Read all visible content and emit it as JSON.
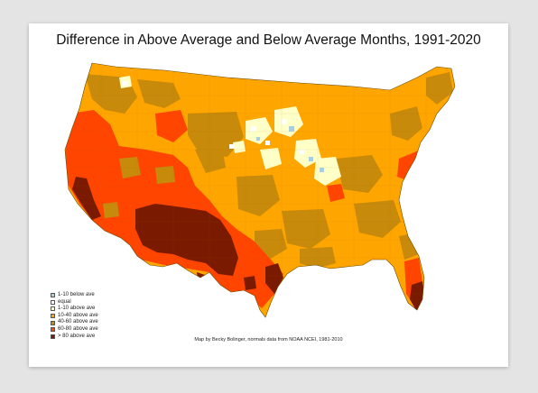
{
  "title": "Difference in Above Average and Below Average Months, 1991-2020",
  "credit": "Map by Becky Bolinger, normals data from NOAA NCEI, 1981-2010",
  "legend": [
    {
      "label": "1-10 below ave",
      "color": "#a8cfe0"
    },
    {
      "label": "equal",
      "color": "#ffffff"
    },
    {
      "label": "1-10 above ave",
      "color": "#ffffc8"
    },
    {
      "label": "10-40 above ave",
      "color": "#ffa500"
    },
    {
      "label": "40-60 above ave",
      "color": "#c88a0a"
    },
    {
      "label": "60-80 above ave",
      "color": "#ff4500"
    },
    {
      "label": "> 80 above ave",
      "color": "#7a1a00"
    }
  ]
}
